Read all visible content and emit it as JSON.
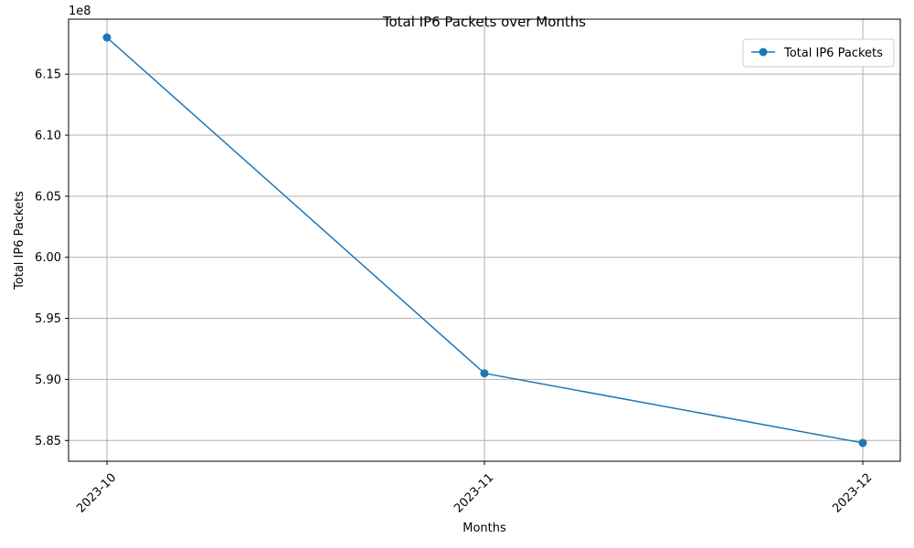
{
  "chart_data": {
    "type": "line",
    "title": "Total IP6 Packets over Months",
    "xlabel": "Months",
    "ylabel": "Total IP6 Packets",
    "offset_text": "1e8",
    "categories": [
      "2023-10",
      "2023-11",
      "2023-12"
    ],
    "series": [
      {
        "name": "Total IP6 Packets",
        "color": "#1f77b4",
        "marker": "circle",
        "values": [
          618000000,
          590500000,
          584800000
        ]
      }
    ],
    "ylim": [
      583300000,
      619500000
    ],
    "yticks": [
      585000000,
      590000000,
      595000000,
      600000000,
      605000000,
      610000000,
      615000000
    ],
    "ytick_labels": [
      "5.85",
      "5.90",
      "5.95",
      "6.00",
      "6.05",
      "6.10",
      "6.15"
    ],
    "grid": true,
    "legend_position": "upper right",
    "xtick_rotation": 45
  }
}
